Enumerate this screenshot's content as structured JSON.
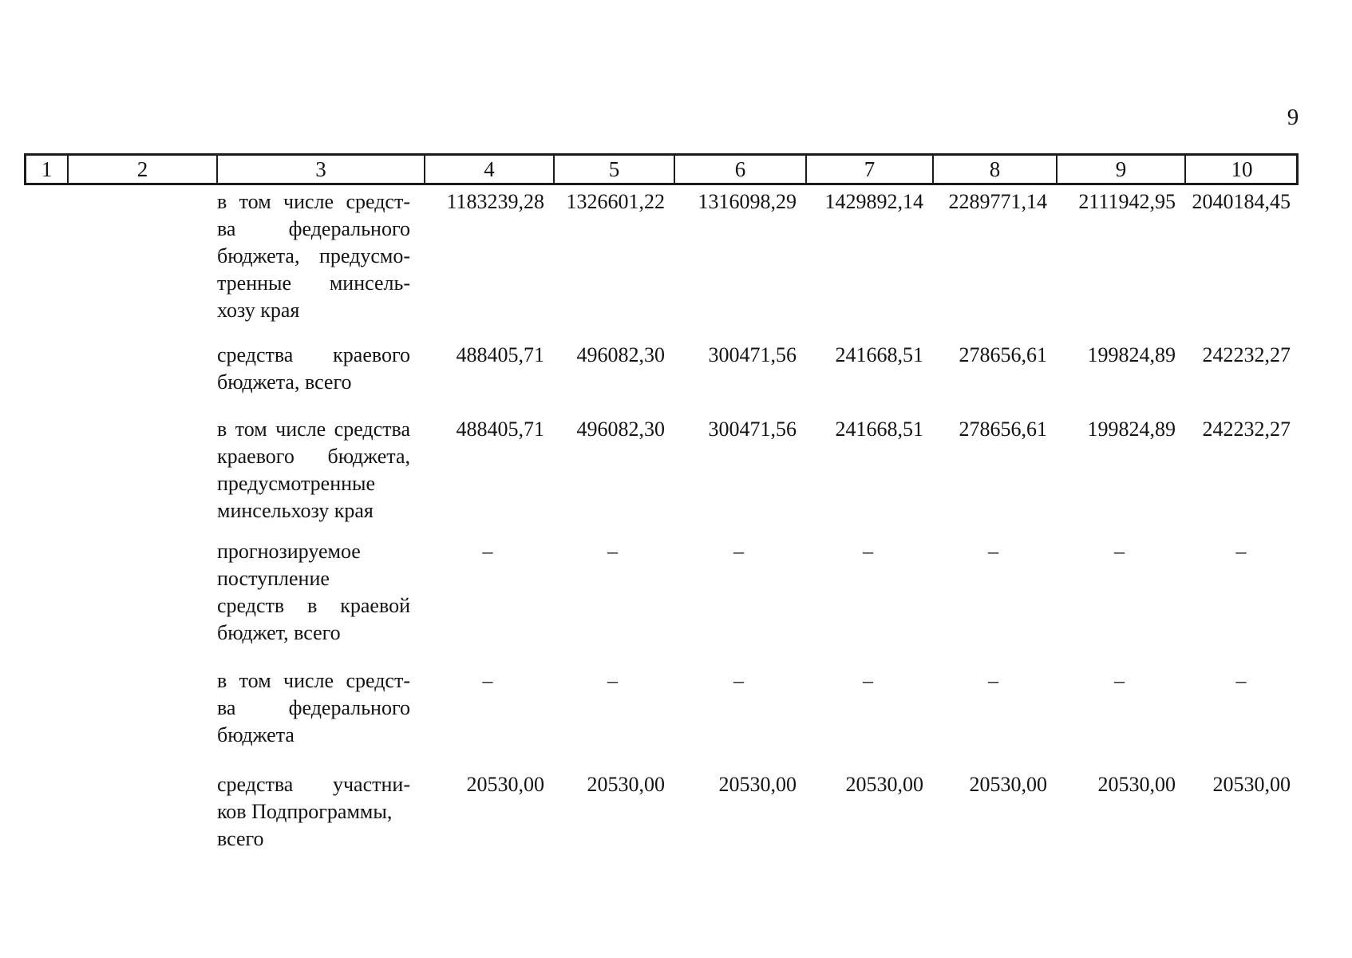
{
  "page_number": "9",
  "table": {
    "column_headers": [
      "1",
      "2",
      "3",
      "4",
      "5",
      "6",
      "7",
      "8",
      "9",
      "10"
    ],
    "rows": [
      {
        "label_lines": [
          "в том числе средст-",
          "ва федерального",
          "бюджета, предусмо-",
          "тренные минсель-",
          "хозу края"
        ],
        "justified_lines": [
          true,
          true,
          true,
          true,
          false
        ],
        "values": [
          "1183239,28",
          "1326601,22",
          "1316098,29",
          "1429892,14",
          "2289771,14",
          "2111942,95",
          "2040184,45"
        ]
      },
      {
        "label_lines": [
          "средства краевого",
          "бюджета, всего"
        ],
        "justified_lines": [
          true,
          false
        ],
        "values": [
          "488405,71",
          "496082,30",
          "300471,56",
          "241668,51",
          "278656,61",
          "199824,89",
          "242232,27"
        ]
      },
      {
        "label_lines": [
          "в том числе средства",
          "краевого бюджета,",
          "предусмотренные",
          "минсельхозу края"
        ],
        "justified_lines": [
          true,
          true,
          false,
          false
        ],
        "values": [
          "488405,71",
          "496082,30",
          "300471,56",
          "241668,51",
          "278656,61",
          "199824,89",
          "242232,27"
        ]
      },
      {
        "label_lines": [
          "прогнозируемое",
          "поступление",
          "средств в краевой",
          "бюджет, всего"
        ],
        "justified_lines": [
          false,
          false,
          true,
          false
        ],
        "values": [
          "–",
          "–",
          "–",
          "–",
          "–",
          "–",
          "–"
        ]
      },
      {
        "label_lines": [
          "в том числе средст-",
          "ва федерального",
          "бюджета"
        ],
        "justified_lines": [
          true,
          true,
          false
        ],
        "values": [
          "–",
          "–",
          "–",
          "–",
          "–",
          "–",
          "–"
        ]
      },
      {
        "label_lines": [
          "средства участни-",
          "ков Подпрограммы,",
          "всего"
        ],
        "justified_lines": [
          true,
          false,
          false
        ],
        "values": [
          "20530,00",
          "20530,00",
          "20530,00",
          "20530,00",
          "20530,00",
          "20530,00",
          "20530,00"
        ]
      }
    ]
  }
}
